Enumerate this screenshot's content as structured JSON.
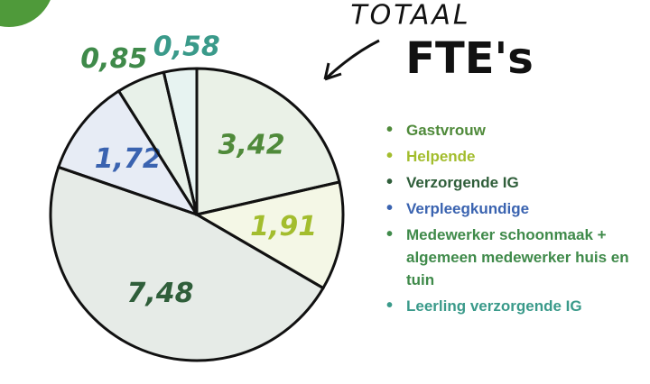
{
  "chart_data": {
    "type": "pie",
    "title": "TOTAAL",
    "subtitle": "FTE's",
    "categories": [
      "Gastvrouw",
      "Helpende",
      "Verzorgende IG",
      "Verpleegkundige",
      "Medewerker schoonmaak + algemeen medewerker huis en tuin",
      "Leerling verzorgende IG"
    ],
    "values": [
      3.42,
      1.91,
      7.48,
      1.72,
      0.85,
      0.58
    ],
    "value_labels": [
      "3,42",
      "1,91",
      "7,48",
      "1,72",
      "0,85",
      "0,58"
    ],
    "colors": [
      "#4f8a3a",
      "#a3bd2e",
      "#2f5e3a",
      "#3a63b0",
      "#3f8a4a",
      "#3a9a8a"
    ],
    "legend": "right"
  }
}
